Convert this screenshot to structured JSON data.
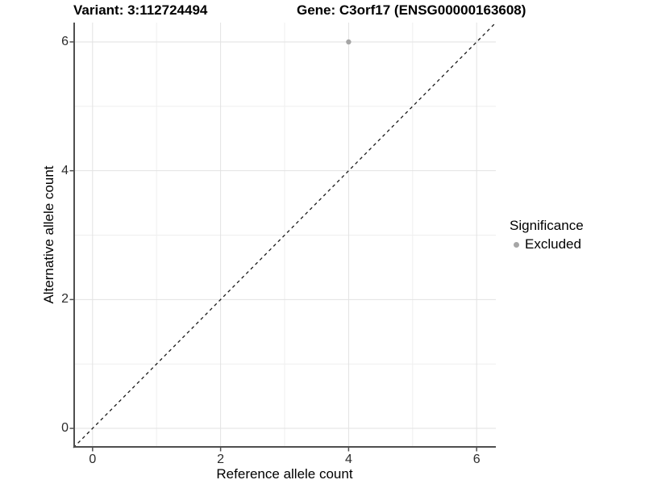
{
  "titles": {
    "left": "Variant: 3:112724494",
    "right": "Gene: C3orf17 (ENSG00000163608)"
  },
  "chart_data": {
    "type": "scatter",
    "xlabel": "Reference allele count",
    "ylabel": "Alternative allele count",
    "xlim": [
      -0.3,
      6.3
    ],
    "ylim": [
      -0.3,
      6.3
    ],
    "x_ticks": [
      0,
      2,
      4,
      6
    ],
    "y_ticks": [
      0,
      2,
      4,
      6
    ],
    "x_minor": [
      1,
      3,
      5
    ],
    "y_minor": [
      1,
      3,
      5
    ],
    "grid": "major-and-minor",
    "legend_position": "right",
    "points": [
      {
        "x": 4,
        "y": 6,
        "series": "Excluded"
      }
    ],
    "reference_line": {
      "kind": "identity y=x",
      "style": "dashed"
    },
    "legend": {
      "title": "Significance",
      "entries": [
        {
          "label": "Excluded",
          "color": "#a6a6a6"
        }
      ]
    }
  },
  "colors": {
    "background": "#ffffff",
    "grid_major": "#e2e2e2",
    "grid_minor": "#efefef",
    "axis_line": "#4f4f4f",
    "tick_mark": "#4f4f4f",
    "reference_line": "#1a1a1a",
    "point": "#a6a6a6",
    "tick_text": "#2b2b2b",
    "text": "#000000"
  }
}
